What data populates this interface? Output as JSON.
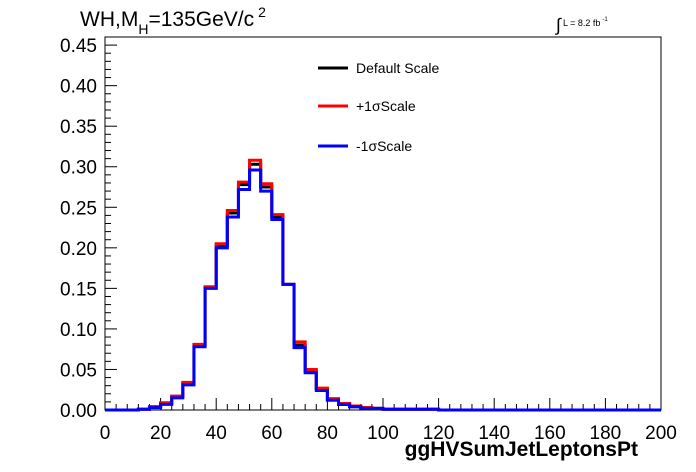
{
  "header": {
    "title_main": "WH,M",
    "title_sub": "H",
    "title_rest": "=135GeV/c",
    "title_sup": "2",
    "lumi_text": "L = 8.2 fb",
    "lumi_sup": "-1"
  },
  "x_axis_title": "ggHVSumJetLeptonsPt",
  "colors": {
    "default": "#000000",
    "plus": "#ff0000",
    "minus": "#0000ff"
  },
  "chart_data": {
    "type": "line",
    "style": "step-histogram",
    "title": "WH,MH=135GeV/c 2",
    "xlabel": "ggHVSumJetLeptonsPt",
    "ylabel": "",
    "xlim": [
      0,
      200
    ],
    "ylim": [
      0,
      0.46
    ],
    "xticks": [
      0,
      20,
      40,
      60,
      80,
      100,
      120,
      140,
      160,
      180,
      200
    ],
    "xtick_labels": [
      "0",
      "20",
      "40",
      "60",
      "80",
      "100",
      "120",
      "140",
      "160",
      "180",
      "200"
    ],
    "yticks": [
      0,
      0.05,
      0.1,
      0.15,
      0.2,
      0.25,
      0.3,
      0.35,
      0.4,
      0.45
    ],
    "ytick_labels": [
      "0.00",
      "0.05",
      "0.10",
      "0.15",
      "0.20",
      "0.25",
      "0.30",
      "0.35",
      "0.40",
      "0.45"
    ],
    "grid": false,
    "legend_position": "top-center",
    "bin_edges": [
      0,
      4,
      8,
      12,
      16,
      20,
      24,
      28,
      32,
      36,
      40,
      44,
      48,
      52,
      56,
      60,
      64,
      68,
      72,
      76,
      80,
      84,
      88,
      92,
      96,
      100,
      104,
      108,
      112,
      116,
      120,
      124,
      128,
      132,
      136,
      140,
      144,
      148,
      152,
      156,
      160,
      164,
      168,
      172,
      176,
      180,
      184,
      188,
      192,
      196,
      200
    ],
    "series": [
      {
        "name": "Default Scale",
        "color": "#000000",
        "values": [
          0,
          0,
          0,
          0.001,
          0.004,
          0.008,
          0.017,
          0.033,
          0.08,
          0.151,
          0.203,
          0.243,
          0.278,
          0.303,
          0.275,
          0.238,
          0.155,
          0.08,
          0.048,
          0.026,
          0.013,
          0.007,
          0.004,
          0.003,
          0.002,
          0.001,
          0.001,
          0.001,
          0.001,
          0.001,
          0,
          0,
          0,
          0,
          0,
          0,
          0,
          0,
          0,
          0,
          0,
          0,
          0,
          0,
          0,
          0,
          0,
          0,
          0,
          0
        ]
      },
      {
        "name": "+1σScale",
        "color": "#ff0000",
        "values": [
          0,
          0,
          0,
          0.001,
          0.004,
          0.009,
          0.017,
          0.034,
          0.081,
          0.152,
          0.205,
          0.246,
          0.281,
          0.308,
          0.279,
          0.241,
          0.155,
          0.084,
          0.05,
          0.027,
          0.014,
          0.008,
          0.005,
          0.003,
          0.002,
          0.001,
          0.001,
          0.001,
          0.001,
          0.001,
          0,
          0,
          0,
          0,
          0,
          0,
          0,
          0,
          0,
          0,
          0,
          0,
          0,
          0,
          0,
          0,
          0,
          0,
          0,
          0
        ]
      },
      {
        "name": "-1σScale",
        "color": "#0000ff",
        "values": [
          0,
          0,
          0,
          0.001,
          0.003,
          0.007,
          0.015,
          0.031,
          0.078,
          0.15,
          0.2,
          0.238,
          0.272,
          0.296,
          0.27,
          0.235,
          0.155,
          0.077,
          0.046,
          0.024,
          0.012,
          0.007,
          0.004,
          0.002,
          0.002,
          0.001,
          0.001,
          0.001,
          0.001,
          0.001,
          0,
          0,
          0,
          0,
          0,
          0,
          0,
          0,
          0,
          0,
          0,
          0,
          0,
          0,
          0,
          0,
          0,
          0,
          0,
          0
        ]
      }
    ]
  }
}
